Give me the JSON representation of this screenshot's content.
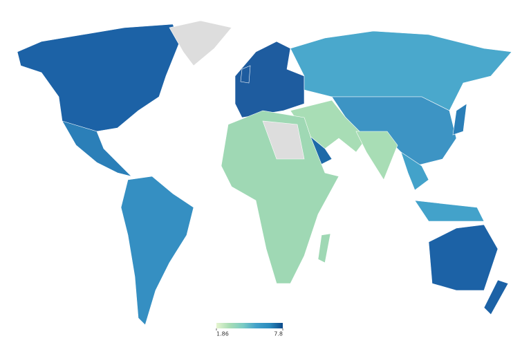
{
  "legend": {
    "min": 1.86,
    "max": 7.8,
    "colors": [
      "#e6f5d0",
      "#a8ddb5",
      "#7bccc4",
      "#43a2ca",
      "#2b8cbe",
      "#0c4a8a"
    ]
  }
}
